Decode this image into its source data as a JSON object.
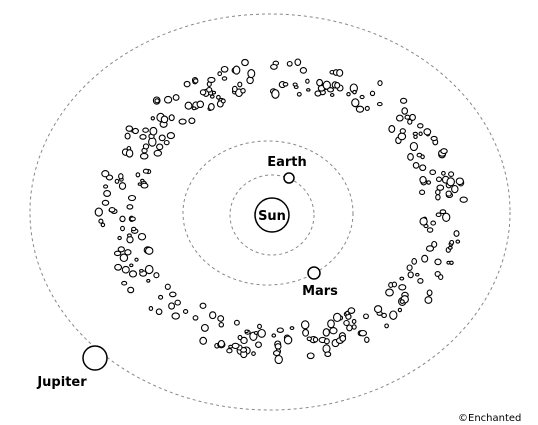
{
  "labels": {
    "sun": "Sun",
    "earth": "Earth",
    "mars": "Mars",
    "jupiter": "Jupiter"
  },
  "credit": "©Enchanted"
}
